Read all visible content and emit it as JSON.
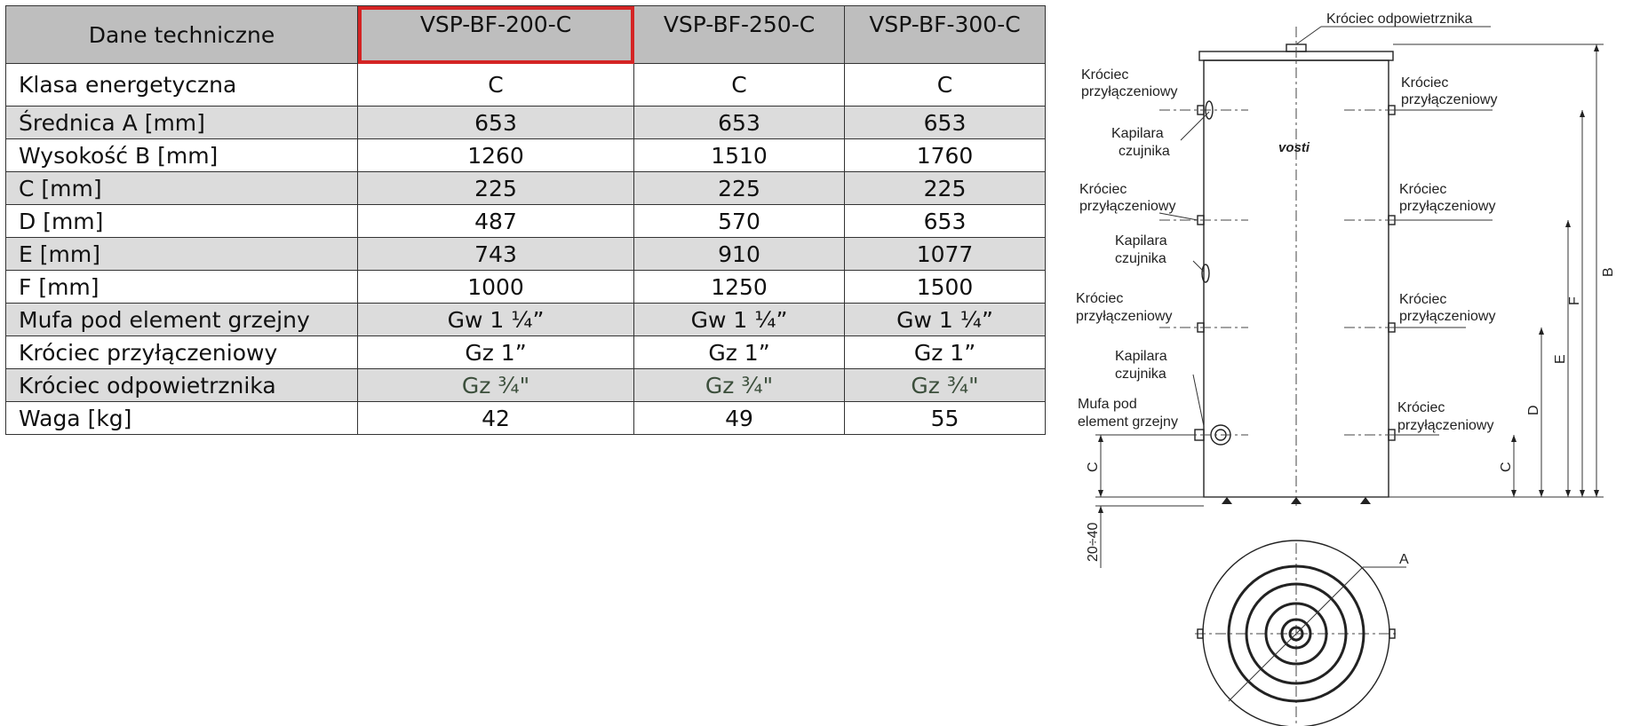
{
  "table": {
    "header": {
      "title": "Dane techniczne",
      "models": [
        "VSP-BF-200-C",
        "VSP-BF-250-C",
        "VSP-BF-300-C"
      ]
    },
    "rows": [
      {
        "label": "Klasa energetyczna",
        "values": [
          "C",
          "C",
          "C"
        ]
      },
      {
        "label": "Średnica A [mm]",
        "values": [
          "653",
          "653",
          "653"
        ]
      },
      {
        "label": "Wysokość B [mm]",
        "values": [
          "1260",
          "1510",
          "1760"
        ]
      },
      {
        "label": "C [mm]",
        "values": [
          "225",
          "225",
          "225"
        ]
      },
      {
        "label": "D [mm]",
        "values": [
          "487",
          "570",
          "653"
        ]
      },
      {
        "label": "E [mm]",
        "values": [
          "743",
          "910",
          "1077"
        ]
      },
      {
        "label": "F [mm]",
        "values": [
          "1000",
          "1250",
          "1500"
        ]
      },
      {
        "label": "Mufa pod element grzejny",
        "values": [
          "Gw 1 ¼”",
          "Gw 1 ¼”",
          "Gw 1 ¼”"
        ]
      },
      {
        "label": "Króciec przyłączeniowy",
        "values": [
          "Gz 1”",
          "Gz 1”",
          "Gz 1”"
        ]
      },
      {
        "label": "Króciec odpowietrznika",
        "values": [
          "Gz ¾\"",
          "Gz ¾\"",
          "Gz ¾\""
        ]
      },
      {
        "label": "Waga [kg]",
        "values": [
          "42",
          "49",
          "55"
        ]
      }
    ],
    "highlight_color": "#d42424"
  },
  "drawing": {
    "brand": "vosti",
    "vent_label": "Króciec odpowietrznika",
    "left_labels": {
      "connector_1": [
        "Króciec",
        "przyłączeniowy"
      ],
      "sensor_1": [
        "Kapilara",
        "czujnika"
      ],
      "connector_2": [
        "Króciec",
        "przyłączeniowy"
      ],
      "sensor_2": [
        "Kapilara",
        "czujnika"
      ],
      "connector_3": [
        "Króciec",
        "przyłączeniowy"
      ],
      "sensor_3": [
        "Kapilara",
        "czujnika"
      ],
      "heater": [
        "Mufa pod",
        "element grzejny"
      ]
    },
    "right_labels": {
      "connector_1": [
        "Króciec",
        "przyłączeniowy"
      ],
      "connector_2": [
        "Króciec",
        "przyłączeniowy"
      ],
      "connector_3": [
        "Króciec",
        "przyłączeniowy"
      ],
      "connector_4": [
        "Króciec",
        "przyłączeniowy"
      ]
    },
    "dimensions": {
      "c_left": "C",
      "legs": "20÷40",
      "c_right": "C",
      "d": "D",
      "e": "E",
      "f": "F",
      "b": "B",
      "a": "A"
    }
  }
}
